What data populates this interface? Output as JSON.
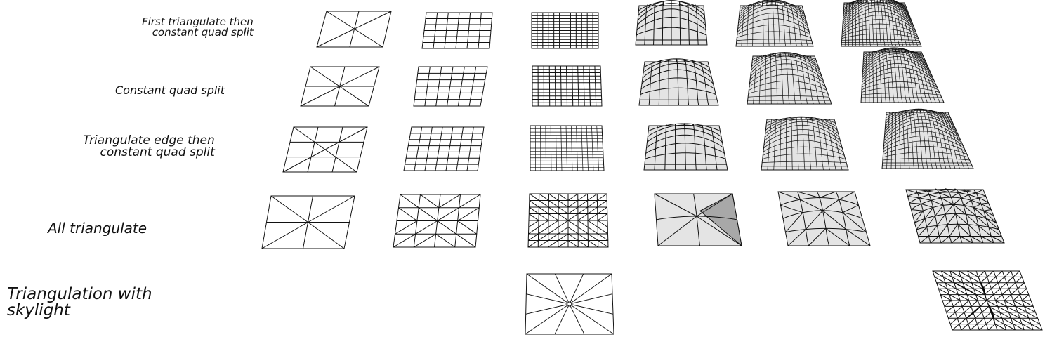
{
  "figure": {
    "rows": [
      {
        "label": "First triangulate then\nconstant quad split",
        "pattern": "quad-triangulated-first",
        "subdivision_levels": 6
      },
      {
        "label": "Constant quad split",
        "pattern": "quad-constant",
        "subdivision_levels": 6
      },
      {
        "label": "Triangulate edge then\nconstant quad split",
        "pattern": "quad-diamond",
        "subdivision_levels": 6
      },
      {
        "label": "All triangulate",
        "pattern": "triangle-fan",
        "subdivision_levels": 6
      },
      {
        "label": "Triangulation with\nskylight",
        "pattern": "triangle-skylight",
        "subdivision_levels": 2
      }
    ],
    "colors": {
      "line": "#111111",
      "flat_fill": "#ffffff",
      "shell_fill": "#e4e4e4",
      "shell_shadow": "#a8a8a8",
      "skylight_rib": "#000000"
    }
  }
}
